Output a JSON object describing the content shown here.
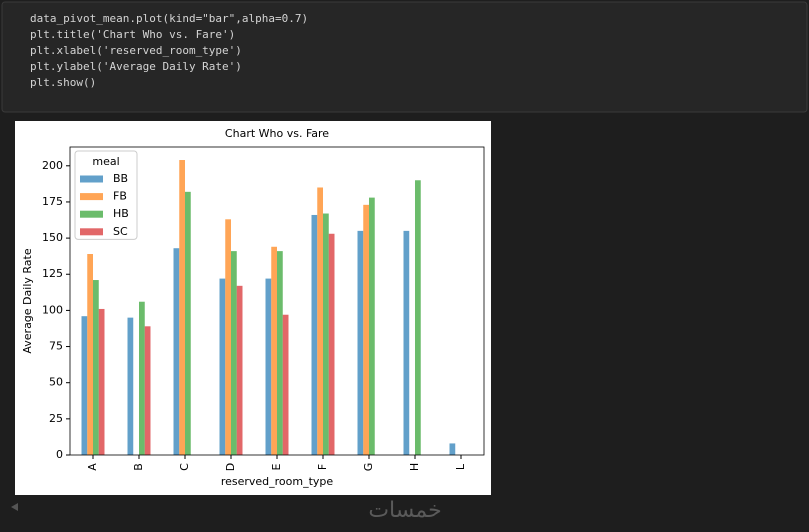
{
  "code": {
    "lines": [
      "data_pivot_mean.plot(kind=\"bar\",alpha=0.7)",
      "plt.title('Chart Who vs. Fare')",
      "plt.xlabel('reserved_room_type')",
      "plt.ylabel('Average Daily Rate')",
      "plt.show()"
    ]
  },
  "chart_data": {
    "type": "bar",
    "title": "Chart Who vs. Fare",
    "x_label": "reserved_room_type",
    "y_label": "Average Daily Rate",
    "categories": [
      "A",
      "B",
      "C",
      "D",
      "E",
      "F",
      "G",
      "H",
      "L"
    ],
    "series": [
      {
        "name": "BB",
        "color": "#1f77b4",
        "values": [
          96,
          95,
          143,
          122,
          122,
          166,
          155,
          155,
          8
        ]
      },
      {
        "name": "FB",
        "color": "#ff7f0e",
        "values": [
          139,
          null,
          204,
          163,
          144,
          185,
          173,
          null,
          null
        ]
      },
      {
        "name": "HB",
        "color": "#2ca02c",
        "values": [
          121,
          106,
          182,
          141,
          141,
          167,
          178,
          190,
          null
        ]
      },
      {
        "name": "SC",
        "color": "#d62728",
        "values": [
          101,
          89,
          null,
          117,
          97,
          153,
          null,
          null,
          null
        ]
      }
    ],
    "alpha": 0.7,
    "ylim": [
      0,
      213
    ],
    "yticks": [
      0,
      25,
      50,
      75,
      100,
      125,
      150,
      175,
      200
    ],
    "legend_title": "meal",
    "legend": "upper left",
    "grid": false
  },
  "watermark": "خمسات"
}
